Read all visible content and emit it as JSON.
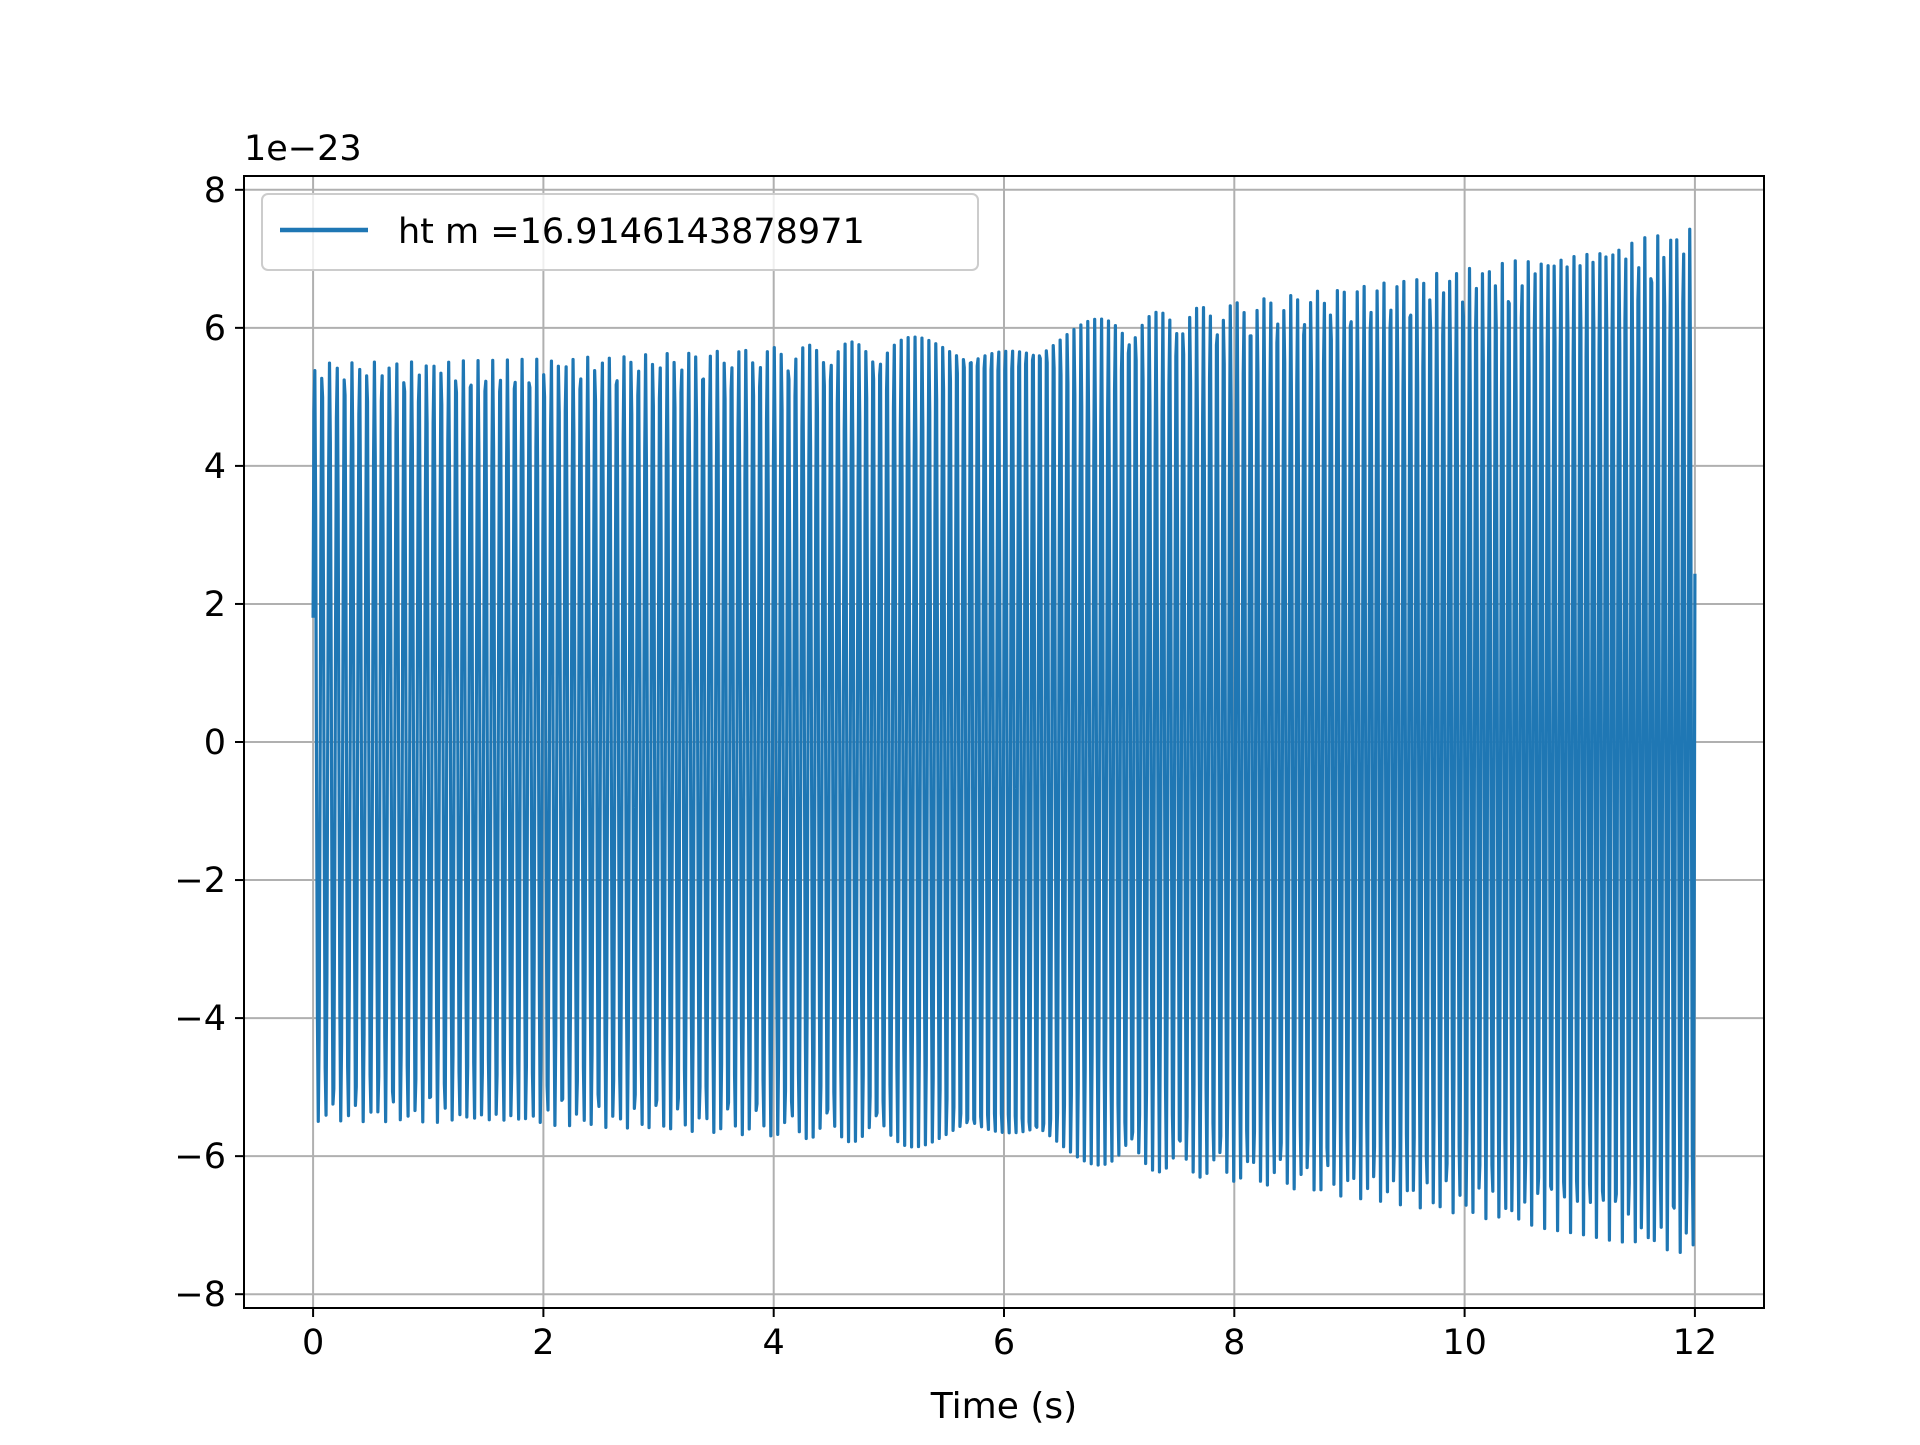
{
  "chart_data": {
    "type": "line",
    "title": "",
    "xlabel": "Time (s)",
    "ylabel": "",
    "y_offset_label": "1e−23",
    "y_scale_factor": 1e-23,
    "xlim": [
      -0.6,
      12.6
    ],
    "ylim": [
      -8.2,
      8.2
    ],
    "xticks": [
      0,
      2,
      4,
      6,
      8,
      10,
      12
    ],
    "xtick_labels": [
      "0",
      "2",
      "4",
      "6",
      "8",
      "10",
      "12"
    ],
    "yticks": [
      -8,
      -6,
      -4,
      -2,
      0,
      2,
      4,
      6,
      8
    ],
    "ytick_labels": [
      "−8",
      "−6",
      "−4",
      "−2",
      "0",
      "2",
      "4",
      "6",
      "8"
    ],
    "grid": true,
    "legend_position": "top-left",
    "series": [
      {
        "name": "ht m =16.9146143878971",
        "color": "#1f77b4",
        "signal": {
          "t_start": 0,
          "t_end": 12,
          "amplitude_start": 5.5,
          "amplitude_end": 7.45,
          "cycles": 200,
          "start_value": 1.8
        }
      }
    ]
  }
}
